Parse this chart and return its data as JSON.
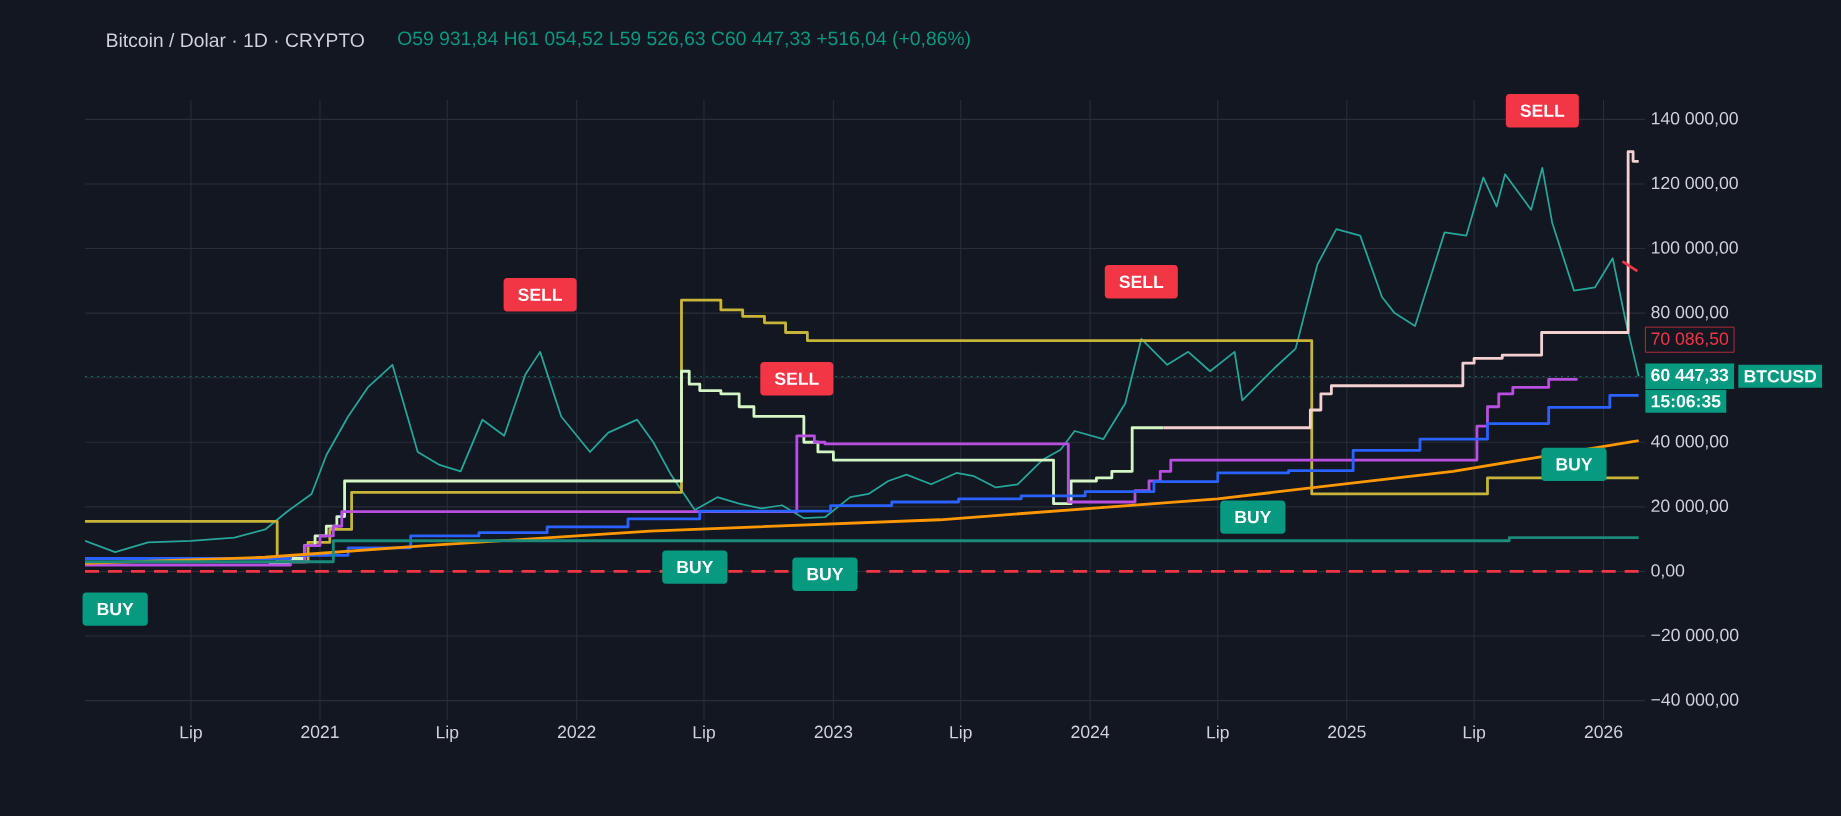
{
  "chart_data": {
    "type": "line",
    "title": "Bitcoin / Dolar · 1D · CRYPTO",
    "subtitle": "O59 931,84 H61 054,52 L59 526,63 C60 447,33 +516,04 (+0,86%)",
    "xlim": [
      "2020-02-01",
      "2026-03-01"
    ],
    "ylim": [
      -46000,
      146000
    ],
    "xticks": [
      {
        "value": "2020-07-01",
        "label": "Lip"
      },
      "2021",
      {
        "value": "2021-07-01",
        "label": "Lip"
      },
      "2022",
      {
        "value": "2022-07-01",
        "label": "Lip"
      },
      "2023",
      {
        "value": "2023-07-01",
        "label": "Lip"
      },
      "2024",
      {
        "value": "2024-07-01",
        "label": "Lip"
      },
      "2025",
      {
        "value": "2025-07-01",
        "label": "Lip"
      },
      "2026"
    ],
    "yticks": [
      {
        "value": -40000,
        "label": "−40 000,00"
      },
      {
        "value": -20000,
        "label": "−20 000,00"
      },
      {
        "value": 0,
        "label": "0,00"
      },
      {
        "value": 20000,
        "label": "20 000,00"
      },
      {
        "value": 40000,
        "label": "40 000,00"
      },
      {
        "value": 60000,
        "label": null
      },
      {
        "value": 80000,
        "label": "80 000,00"
      },
      {
        "value": 100000,
        "label": "100 000,00"
      },
      {
        "value": 120000,
        "label": "120 000,00"
      },
      {
        "value": 140000,
        "label": "140 000,00"
      }
    ],
    "grid": true,
    "series": [
      {
        "color": "#26a69a",
        "x": [
          "2020-02-01",
          "2020-03-15",
          "2020-05-01",
          "2020-07-01",
          "2020-09-01",
          "2020-10-15",
          "2020-11-15",
          "2020-12-20",
          "2021-01-10",
          "2021-02-10",
          "2021-03-10",
          "2021-04-14",
          "2021-05-20",
          "2021-06-20",
          "2021-07-20",
          "2021-08-20",
          "2021-09-20",
          "2021-10-20",
          "2021-11-10",
          "2021-12-10",
          "2022-01-20",
          "2022-02-15",
          "2022-03-28",
          "2022-04-20",
          "2022-05-15",
          "2022-06-18",
          "2022-07-20",
          "2022-08-20",
          "2022-09-20",
          "2022-10-20",
          "2022-11-20",
          "2022-12-20",
          "2023-01-25",
          "2023-02-20",
          "2023-03-20",
          "2023-04-15",
          "2023-05-20",
          "2023-06-25",
          "2023-07-20",
          "2023-08-20",
          "2023-09-20",
          "2023-10-25",
          "2023-11-20",
          "2023-12-10",
          "2024-01-20",
          "2024-02-20",
          "2024-03-14",
          "2024-04-20",
          "2024-05-20",
          "2024-06-20",
          "2024-07-25",
          "2024-08-05",
          "2024-09-20",
          "2024-10-20",
          "2024-11-20",
          "2024-12-17",
          "2025-01-20",
          "2025-02-20",
          "2025-03-10",
          "2025-04-08",
          "2025-05-20",
          "2025-06-20",
          "2025-07-14",
          "2025-08-02",
          "2025-08-14",
          "2025-09-20",
          "2025-10-06",
          "2025-10-20",
          "2025-11-20",
          "2025-12-20",
          "2026-01-14",
          "2026-02-01",
          "2026-02-20"
        ],
        "values": [
          9500,
          6000,
          9000,
          9500,
          10500,
          13000,
          18500,
          24000,
          36000,
          48000,
          57000,
          64000,
          37000,
          33000,
          31000,
          47000,
          42000,
          61000,
          68000,
          48000,
          37000,
          43000,
          47000,
          40000,
          30000,
          19000,
          23000,
          21000,
          19500,
          20500,
          16500,
          16800,
          23000,
          24000,
          28000,
          30000,
          27000,
          30500,
          29500,
          26000,
          27000,
          34500,
          37700,
          43500,
          41000,
          52000,
          72000,
          64000,
          68000,
          62000,
          68000,
          53000,
          63000,
          69000,
          95000,
          106000,
          104000,
          85000,
          80000,
          76000,
          105000,
          104000,
          122000,
          113000,
          123000,
          112000,
          125000,
          108000,
          87000,
          88000,
          97000,
          78000,
          60400
        ]
      },
      {
        "type": "step",
        "color": "#c9b43a",
        "x": [
          "2020-02-01",
          "2020-11-01",
          "2020-12-15",
          "2021-01-15",
          "2021-02-15",
          "2022-05-30",
          "2022-07-25",
          "2022-08-25",
          "2022-09-25",
          "2022-10-25",
          "2022-11-25",
          "2024-11-12",
          "2025-07-20",
          "2026-02-20"
        ],
        "values": [
          15500,
          3000,
          9000,
          13000,
          24500,
          84000,
          81000,
          79000,
          77000,
          74000,
          71500,
          24000,
          29000,
          29000
        ]
      },
      {
        "type": "step",
        "color": "#d4f5c4",
        "x": [
          "2020-10-20",
          "2020-11-20",
          "2020-12-10",
          "2020-12-25",
          "2021-01-10",
          "2021-01-25",
          "2021-02-05",
          "2022-05-30",
          "2022-06-10",
          "2022-06-25",
          "2022-07-25",
          "2022-08-20",
          "2022-09-10",
          "2022-10-10",
          "2022-11-01",
          "2022-11-20",
          "2022-12-10",
          "2023-01-01",
          "2023-11-10",
          "2023-12-05",
          "2024-01-10",
          "2024-02-01",
          "2024-03-01",
          "2024-04-15"
        ],
        "values": [
          2500,
          4000,
          8000,
          11000,
          14000,
          17000,
          28000,
          62000,
          58000,
          56000,
          55000,
          51000,
          48000,
          null,
          null,
          40000,
          37000,
          34500,
          21000,
          28000,
          29000,
          31000,
          44500,
          44500
        ]
      },
      {
        "type": "step",
        "color": "#f5d0d0",
        "x": [
          "2024-04-15",
          "2024-11-10",
          "2024-11-25",
          "2024-12-10",
          "2025-06-15",
          "2025-07-01",
          "2025-08-10",
          "2025-10-05",
          "2026-02-05",
          "2026-02-12",
          "2026-02-20"
        ],
        "values": [
          44500,
          50000,
          55000,
          57500,
          64500,
          66000,
          67000,
          74000,
          130000,
          127000,
          127000
        ]
      },
      {
        "type": "step",
        "color": "#b84fe0",
        "x": [
          "2020-02-01",
          "2020-11-20",
          "2020-12-10",
          "2021-01-01",
          "2021-01-20",
          "2021-02-01",
          "2022-11-10",
          "2022-12-05",
          "2022-12-20",
          "2023-12-01",
          "2024-03-05",
          "2024-03-25",
          "2024-04-10",
          "2024-04-25",
          "2025-07-05",
          "2025-07-20",
          "2025-08-05",
          "2025-08-25",
          "2025-10-15",
          "2025-11-25"
        ],
        "values": [
          2000,
          3000,
          8000,
          11000,
          14000,
          18500,
          42000,
          40000,
          39500,
          21500,
          25000,
          28000,
          31000,
          34500,
          45000,
          51000,
          55000,
          57000,
          59500,
          59500
        ]
      },
      {
        "type": "step",
        "color": "#2962ff",
        "x": [
          "2020-02-01",
          "2020-11-20",
          "2021-02-10",
          "2021-05-10",
          "2021-08-15",
          "2021-11-20",
          "2022-03-15",
          "2022-06-25",
          "2022-12-28",
          "2023-03-25",
          "2023-06-28",
          "2023-09-25",
          "2023-12-25",
          "2024-04-01",
          "2024-07-01",
          "2024-10-10",
          "2025-01-10",
          "2025-04-15",
          "2025-07-20",
          "2025-10-15",
          "2026-01-10",
          "2026-02-20"
        ],
        "values": [
          4000,
          5000,
          7300,
          11000,
          12000,
          13800,
          16300,
          18700,
          20400,
          21500,
          22500,
          23400,
          24700,
          27800,
          30500,
          31200,
          37500,
          41000,
          45800,
          50800,
          54500,
          54500
        ]
      },
      {
        "type": "line",
        "color": "#ff9800",
        "x": [
          "2020-02-01",
          "2020-10-15",
          "2021-06-01",
          "2022-04-15",
          "2023-06-01",
          "2024-07-01",
          "2025-06-01",
          "2026-02-20"
        ],
        "values": [
          2500,
          4400,
          8000,
          12500,
          16000,
          22500,
          31000,
          40500
        ]
      },
      {
        "type": "step",
        "color": "#1b8a7a",
        "x": [
          "2020-02-01",
          "2021-01-20",
          "2025-08-20",
          "2026-02-20"
        ],
        "values": [
          3000,
          9500,
          10500,
          10500
        ]
      },
      {
        "type": "line",
        "color": "#f23645",
        "line_style": "dashed",
        "x": [
          "2020-02-01",
          "2026-02-20"
        ],
        "values": [
          0,
          0
        ]
      },
      {
        "type": "line",
        "color": "#f23645",
        "x": [
          "2026-01-28",
          "2026-02-18"
        ],
        "values": [
          96000,
          93000
        ]
      }
    ],
    "ref_lines": [
      {
        "axis": "y",
        "value": 60447.33,
        "label": "60 447,33",
        "color": "#089981",
        "line_style": "dotted"
      }
    ],
    "annotations": [
      {
        "text": "SELL",
        "x": "2021-11-10",
        "y": 68000
      },
      {
        "text": "SELL",
        "x": "2022-11-10",
        "y": 42000
      },
      {
        "text": "SELL",
        "x": "2024-03-14",
        "y": 72000
      },
      {
        "text": "SELL",
        "x": "2025-10-06",
        "y": 125000
      },
      {
        "text": "BUY",
        "x": "2020-03-15",
        "y": 6000
      },
      {
        "text": "BUY",
        "x": "2022-06-18",
        "y": 19000
      },
      {
        "text": "BUY",
        "x": "2022-12-20",
        "y": 16800
      },
      {
        "text": "BUY",
        "x": "2024-08-20",
        "y": 34500
      },
      {
        "text": "BUY",
        "x": "2025-11-20",
        "y": 50800
      },
      "70 086,50",
      "BTCUSD",
      "15:06:35"
    ]
  }
}
